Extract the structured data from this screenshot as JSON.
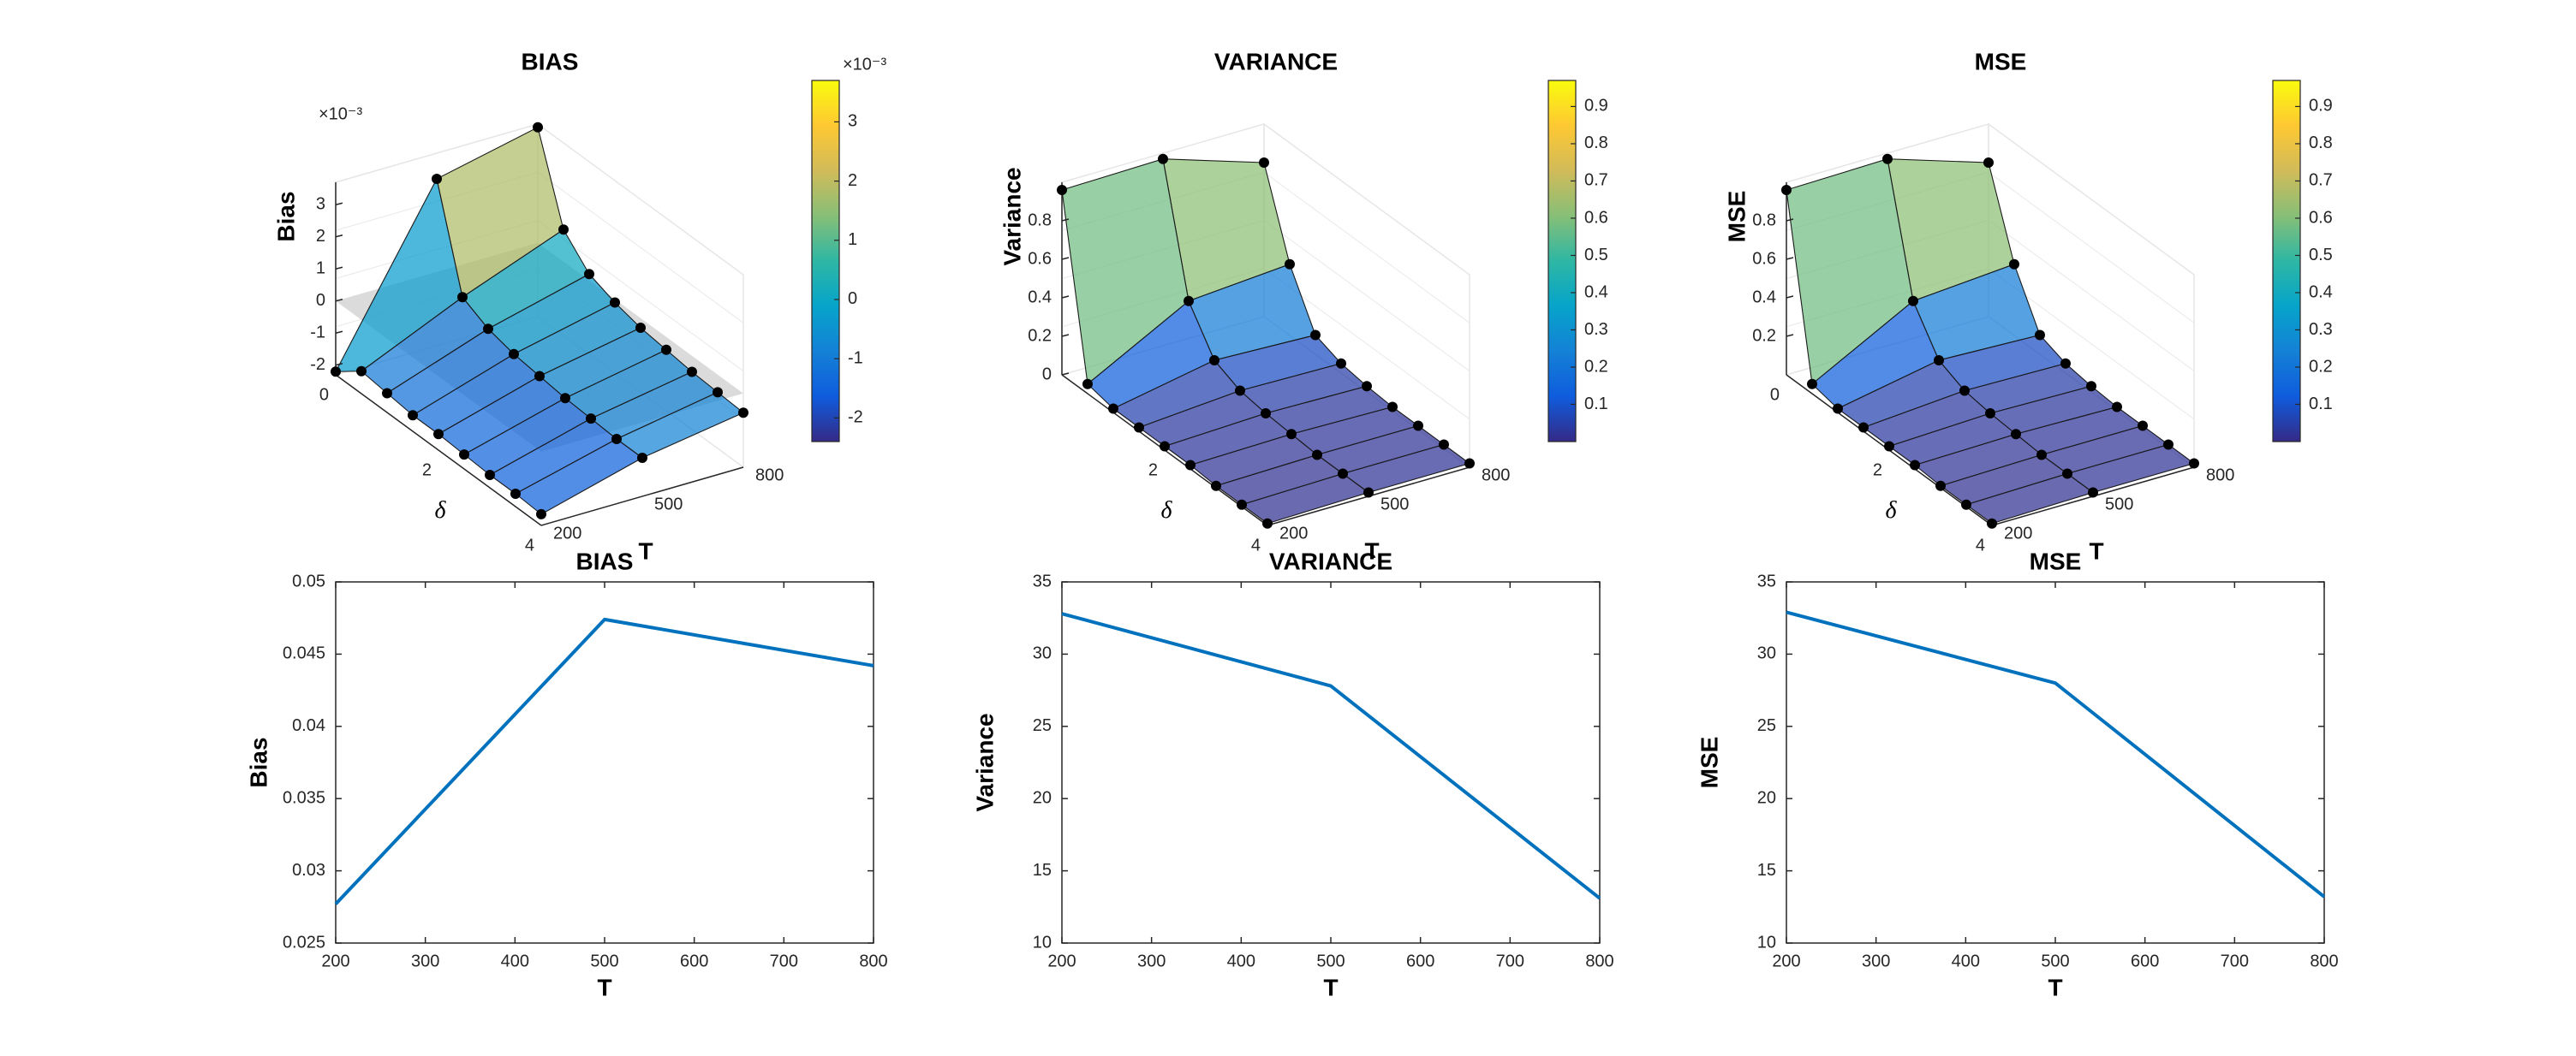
{
  "chart_data": [
    {
      "type": "surface",
      "title": "BIAS",
      "xlabel": "δ",
      "ylabel": "T",
      "zlabel": "Bias",
      "exponent_label": "×10⁻³",
      "delta_ticks": [
        "0",
        "2",
        "4"
      ],
      "T_ticks": [
        "200",
        "500",
        "800"
      ],
      "z_ticks": [
        "-2",
        "-1",
        "0",
        "1",
        "2",
        "3"
      ],
      "zlim": [
        -2.3,
        3.7
      ],
      "reference_plane": 0,
      "delta": [
        0,
        0.5,
        1,
        1.5,
        2,
        2.5,
        3,
        3.5,
        4
      ],
      "T": [
        200,
        500,
        800
      ],
      "z": [
        [
          -2.2,
          2.9,
          3.6
        ],
        [
          -1.6,
          -0.2,
          1.0
        ],
        [
          -1.7,
          -0.6,
          0.2
        ],
        [
          -1.8,
          -0.8,
          -0.1
        ],
        [
          -1.8,
          -0.9,
          -0.3
        ],
        [
          -1.85,
          -1.0,
          -0.4
        ],
        [
          -1.9,
          -1.05,
          -0.5
        ],
        [
          -1.9,
          -1.1,
          -0.55
        ],
        [
          -1.95,
          -1.1,
          -0.6
        ]
      ],
      "colorbar": {
        "exponent": "×10⁻³",
        "ticks": [
          "-2",
          "-1",
          "0",
          "1",
          "2",
          "3"
        ],
        "range": [
          -2.4,
          3.7
        ]
      }
    },
    {
      "type": "surface",
      "title": "VARIANCE",
      "xlabel": "δ",
      "ylabel": "T",
      "zlabel": "Variance",
      "delta_ticks": [
        "2",
        "4"
      ],
      "T_ticks": [
        "200",
        "500",
        "800"
      ],
      "z_ticks": [
        "0",
        "0.2",
        "0.4",
        "0.6",
        "0.8"
      ],
      "zlim": [
        0,
        1.0
      ],
      "delta": [
        0,
        0.5,
        1,
        1.5,
        2,
        2.5,
        3,
        3.5,
        4
      ],
      "T": [
        200,
        500,
        800
      ],
      "z": [
        [
          0.96,
          0.97,
          0.8
        ],
        [
          0.05,
          0.33,
          0.37
        ],
        [
          0.02,
          0.12,
          0.1
        ],
        [
          0.02,
          0.06,
          0.05
        ],
        [
          0.02,
          0.04,
          0.03
        ],
        [
          0.02,
          0.03,
          0.02
        ],
        [
          0.01,
          0.02,
          0.02
        ],
        [
          0.01,
          0.02,
          0.02
        ],
        [
          0.01,
          0.02,
          0.02
        ]
      ],
      "colorbar": {
        "ticks": [
          "0.1",
          "0.2",
          "0.3",
          "0.4",
          "0.5",
          "0.6",
          "0.7",
          "0.8",
          "0.9"
        ],
        "range": [
          0,
          0.97
        ]
      }
    },
    {
      "type": "surface",
      "title": "MSE",
      "xlabel": "δ",
      "ylabel": "T",
      "zlabel": "MSE",
      "delta_ticks": [
        "0",
        "2",
        "4"
      ],
      "T_ticks": [
        "200",
        "500",
        "800"
      ],
      "z_ticks": [
        "0.2",
        "0.4",
        "0.6",
        "0.8"
      ],
      "zlim": [
        0,
        1.0
      ],
      "delta": [
        0,
        0.5,
        1,
        1.5,
        2,
        2.5,
        3,
        3.5,
        4
      ],
      "T": [
        200,
        500,
        800
      ],
      "z": [
        [
          0.96,
          0.97,
          0.8
        ],
        [
          0.05,
          0.33,
          0.37
        ],
        [
          0.02,
          0.12,
          0.1
        ],
        [
          0.02,
          0.06,
          0.05
        ],
        [
          0.02,
          0.04,
          0.03
        ],
        [
          0.02,
          0.03,
          0.02
        ],
        [
          0.01,
          0.02,
          0.02
        ],
        [
          0.01,
          0.02,
          0.02
        ],
        [
          0.01,
          0.02,
          0.02
        ]
      ],
      "colorbar": {
        "ticks": [
          "0.1",
          "0.2",
          "0.3",
          "0.4",
          "0.5",
          "0.6",
          "0.7",
          "0.8",
          "0.9"
        ],
        "range": [
          0,
          0.97
        ]
      }
    },
    {
      "type": "line",
      "title": "BIAS",
      "xlabel": "T",
      "ylabel": "Bias",
      "x": [
        200,
        500,
        800
      ],
      "y": [
        0.0277,
        0.0474,
        0.0442
      ],
      "xlim": [
        200,
        800
      ],
      "ylim": [
        0.025,
        0.05
      ],
      "x_ticks": [
        "200",
        "300",
        "400",
        "500",
        "600",
        "700",
        "800"
      ],
      "y_ticks": [
        "0.025",
        "0.03",
        "0.035",
        "0.04",
        "0.045",
        "0.05"
      ],
      "line_color": "#0072BD"
    },
    {
      "type": "line",
      "title": "VARIANCE",
      "xlabel": "T",
      "ylabel": "Variance",
      "x": [
        200,
        500,
        800
      ],
      "y": [
        32.8,
        27.8,
        13.1
      ],
      "xlim": [
        200,
        800
      ],
      "ylim": [
        10,
        35
      ],
      "x_ticks": [
        "200",
        "300",
        "400",
        "500",
        "600",
        "700",
        "800"
      ],
      "y_ticks": [
        "10",
        "15",
        "20",
        "25",
        "30",
        "35"
      ],
      "line_color": "#0072BD"
    },
    {
      "type": "line",
      "title": "MSE",
      "xlabel": "T",
      "ylabel": "MSE",
      "x": [
        200,
        500,
        800
      ],
      "y": [
        32.9,
        28.0,
        13.2
      ],
      "xlim": [
        200,
        800
      ],
      "ylim": [
        10,
        35
      ],
      "x_ticks": [
        "200",
        "300",
        "400",
        "500",
        "600",
        "700",
        "800"
      ],
      "y_ticks": [
        "10",
        "15",
        "20",
        "25",
        "30",
        "35"
      ],
      "line_color": "#0072BD"
    }
  ]
}
